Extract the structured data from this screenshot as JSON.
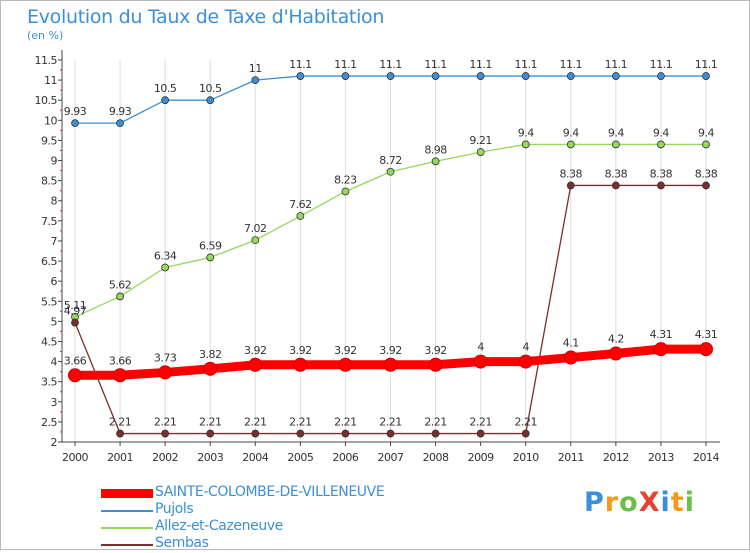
{
  "title": "Evolution du Taux de Taxe d'Habitation",
  "subtitle": "(en %)",
  "logo": {
    "text": "ProXiti",
    "letters": [
      {
        "ch": "P",
        "color": "#3a8fd9"
      },
      {
        "ch": "r",
        "color": "#f39a1c"
      },
      {
        "ch": "o",
        "color": "#6cc04a"
      },
      {
        "ch": "X",
        "color": "#e8432f"
      },
      {
        "ch": "i",
        "color": "#3a8fd9"
      },
      {
        "ch": "t",
        "color": "#f39a1c"
      },
      {
        "ch": "i",
        "color": "#6cc04a"
      }
    ]
  },
  "chart_data": {
    "type": "line",
    "title": "Evolution du Taux de Taxe d'Habitation",
    "ylabel": "(en %)",
    "xlabel": "",
    "x": [
      "2000",
      "2001",
      "2002",
      "2003",
      "2004",
      "2005",
      "2006",
      "2007",
      "2008",
      "2009",
      "2010",
      "2011",
      "2012",
      "2013",
      "2014"
    ],
    "ylim": [
      2,
      11.5
    ],
    "yticks": [
      "2",
      "2.5",
      "3",
      "3.5",
      "4",
      "4.5",
      "5",
      "5.5",
      "6",
      "6.5",
      "7",
      "7.5",
      "8",
      "8.5",
      "9",
      "9.5",
      "10",
      "10.5",
      "11",
      "11.5"
    ],
    "grid": "vertical",
    "legend": "bottom-left",
    "series": [
      {
        "name": "Pujols",
        "color": "#3d8fd1",
        "values": [
          9.93,
          9.93,
          10.5,
          10.5,
          11,
          11.1,
          11.1,
          11.1,
          11.1,
          11.1,
          11.1,
          11.1,
          11.1,
          11.1,
          11.1
        ],
        "labels": [
          "9.93",
          "9.93",
          "10.5",
          "10.5",
          "11",
          "11.1",
          "11.1",
          "11.1",
          "11.1",
          "11.1",
          "11.1",
          "11.1",
          "11.1",
          "11.1",
          "11.1"
        ]
      },
      {
        "name": "Allez-et-Cazeneuve",
        "color": "#94d85c",
        "values": [
          5.11,
          5.62,
          6.34,
          6.59,
          7.02,
          7.62,
          8.23,
          8.72,
          8.98,
          9.21,
          9.4,
          9.4,
          9.4,
          9.4,
          9.4
        ],
        "labels": [
          "5.11",
          "5.62",
          "6.34",
          "6.59",
          "7.02",
          "7.62",
          "8.23",
          "8.72",
          "8.98",
          "9.21",
          "9.4",
          "9.4",
          "9.4",
          "9.4",
          "9.4"
        ]
      },
      {
        "name": "Sembas",
        "color": "#7a2e2e",
        "values": [
          4.97,
          2.21,
          2.21,
          2.21,
          2.21,
          2.21,
          2.21,
          2.21,
          2.21,
          2.21,
          2.21,
          8.38,
          8.38,
          8.38,
          8.38
        ],
        "labels": [
          "4.97",
          "2.21",
          "2.21",
          "2.21",
          "2.21",
          "2.21",
          "2.21",
          "2.21",
          "2.21",
          "2.21",
          "2.21",
          "8.38",
          "8.38",
          "8.38",
          "8.38"
        ]
      },
      {
        "name": "SAINTE-COLOMBE-DE-VILLENEUVE",
        "color": "#ff0000",
        "values": [
          3.66,
          3.66,
          3.73,
          3.82,
          3.92,
          3.92,
          3.92,
          3.92,
          3.92,
          4,
          4,
          4.1,
          4.2,
          4.31,
          4.31
        ],
        "labels": [
          "3.66",
          "3.66",
          "3.73",
          "3.82",
          "3.92",
          "3.92",
          "3.92",
          "3.92",
          "3.92",
          "4",
          "4",
          "4.1",
          "4.2",
          "4.31",
          "4.31"
        ]
      }
    ],
    "legend_entries": [
      {
        "name": "SAINTE-COLOMBE-DE-VILLENEUVE",
        "color": "#ff0000",
        "text_color": "#3c8fd8"
      },
      {
        "name": "Pujols",
        "color": "#3d8fd1",
        "text_color": "#3c8fd8"
      },
      {
        "name": "Allez-et-Cazeneuve",
        "color": "#94d85c",
        "text_color": "#3c8fd8"
      },
      {
        "name": "Sembas",
        "color": "#7a2e2e",
        "text_color": "#3c8fd8"
      }
    ]
  }
}
